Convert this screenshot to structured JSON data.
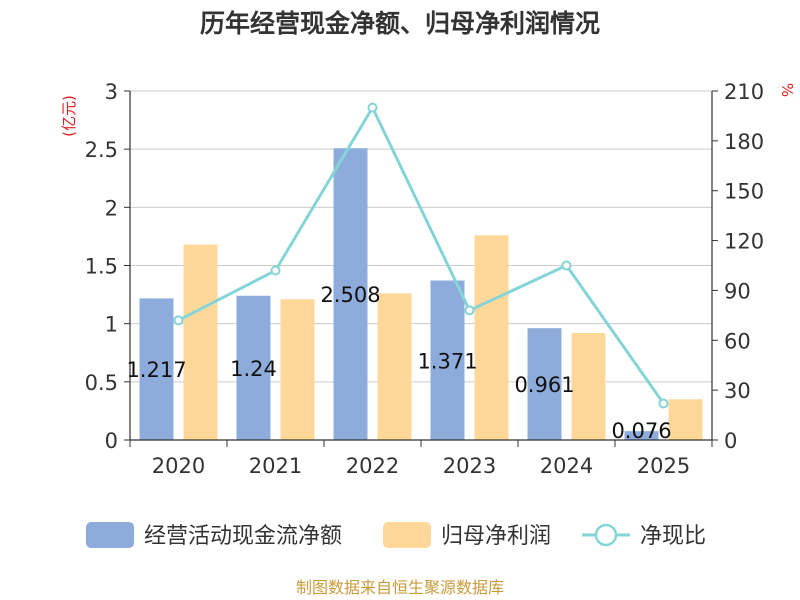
{
  "chart_data": {
    "type": "bar",
    "title": "历年经营现金净额、归母净利润情况",
    "categories": [
      "2020",
      "2021",
      "2022",
      "2023",
      "2024",
      "2025"
    ],
    "series": [
      {
        "name": "经营活动现金流净额",
        "type": "bar",
        "axis": "left",
        "color": "#8eacdb",
        "values": [
          1.217,
          1.24,
          2.508,
          1.371,
          0.961,
          0.076
        ],
        "labels": [
          "1.217",
          "1.24",
          "2.508",
          "1.371",
          "0.961",
          "0.076"
        ]
      },
      {
        "name": "归母净利润",
        "type": "bar",
        "axis": "left",
        "color": "#ffd899",
        "values": [
          1.68,
          1.21,
          1.26,
          1.76,
          0.92,
          0.35
        ]
      },
      {
        "name": "净现比",
        "type": "line",
        "axis": "right",
        "color": "#85d4d8",
        "values": [
          72,
          102,
          200,
          78,
          105,
          22
        ]
      }
    ],
    "left_axis": {
      "unit": "(亿元)",
      "ylim": [
        0,
        3
      ],
      "ticks": [
        "0",
        "0.5",
        "1",
        "1.5",
        "2",
        "2.5",
        "3"
      ]
    },
    "right_axis": {
      "unit": "%",
      "ylim": [
        0,
        210
      ],
      "ticks": [
        "0",
        "30",
        "60",
        "90",
        "120",
        "150",
        "180",
        "210"
      ]
    },
    "grid": true,
    "legend_position": "bottom"
  },
  "footer": {
    "source": "制图数据来自恒生聚源数据库"
  }
}
